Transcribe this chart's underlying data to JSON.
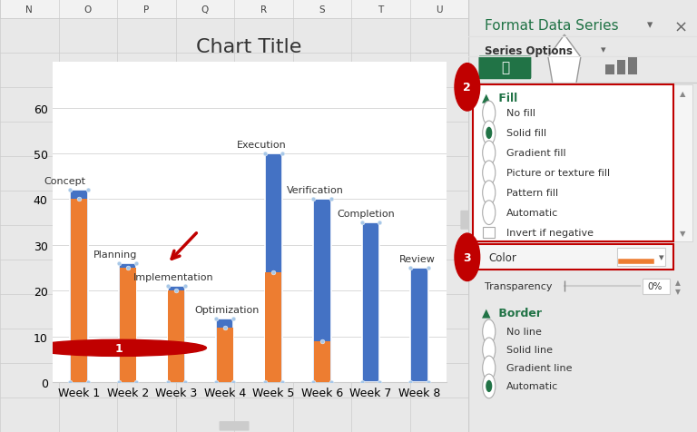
{
  "title": "Chart Title",
  "categories": [
    "Week 1",
    "Week 2",
    "Week 3",
    "Week 4",
    "Week 5",
    "Week 6",
    "Week 7",
    "Week 8"
  ],
  "labels": [
    "Concept",
    "Planning",
    "Implementation",
    "Optimization",
    "Execution",
    "Verification",
    "Completion",
    "Review"
  ],
  "blue_heights": [
    42,
    26,
    21,
    14,
    50,
    40,
    35,
    25
  ],
  "orange_heights": [
    40,
    25,
    20,
    12,
    24,
    9,
    0,
    0
  ],
  "ylim": [
    0,
    70
  ],
  "yticks": [
    0,
    10,
    20,
    30,
    40,
    50,
    60
  ],
  "blue_color": "#4472C4",
  "orange_color": "#ED7D31",
  "grid_color": "#D9D9D9",
  "bar_width": 0.5,
  "title_fontsize": 16,
  "tick_fontsize": 9,
  "col_headers": [
    "N",
    "O",
    "P",
    "Q",
    "R",
    "S",
    "T",
    "U"
  ],
  "right_panel_title": "Format Data Series",
  "fill_options": [
    "No fill",
    "Solid fill",
    "Gradient fill",
    "Picture or texture fill",
    "Pattern fill",
    "Automatic",
    "Invert if negative"
  ],
  "fill_selected": 1,
  "border_options": [
    "No line",
    "Solid line",
    "Gradient line",
    "Automatic"
  ],
  "border_selected": 3,
  "green_color": "#217346",
  "red_color": "#C00000",
  "label_x_offsets": [
    -0.3,
    -0.25,
    -0.05,
    0.05,
    -0.25,
    -0.15,
    -0.1,
    -0.05
  ]
}
